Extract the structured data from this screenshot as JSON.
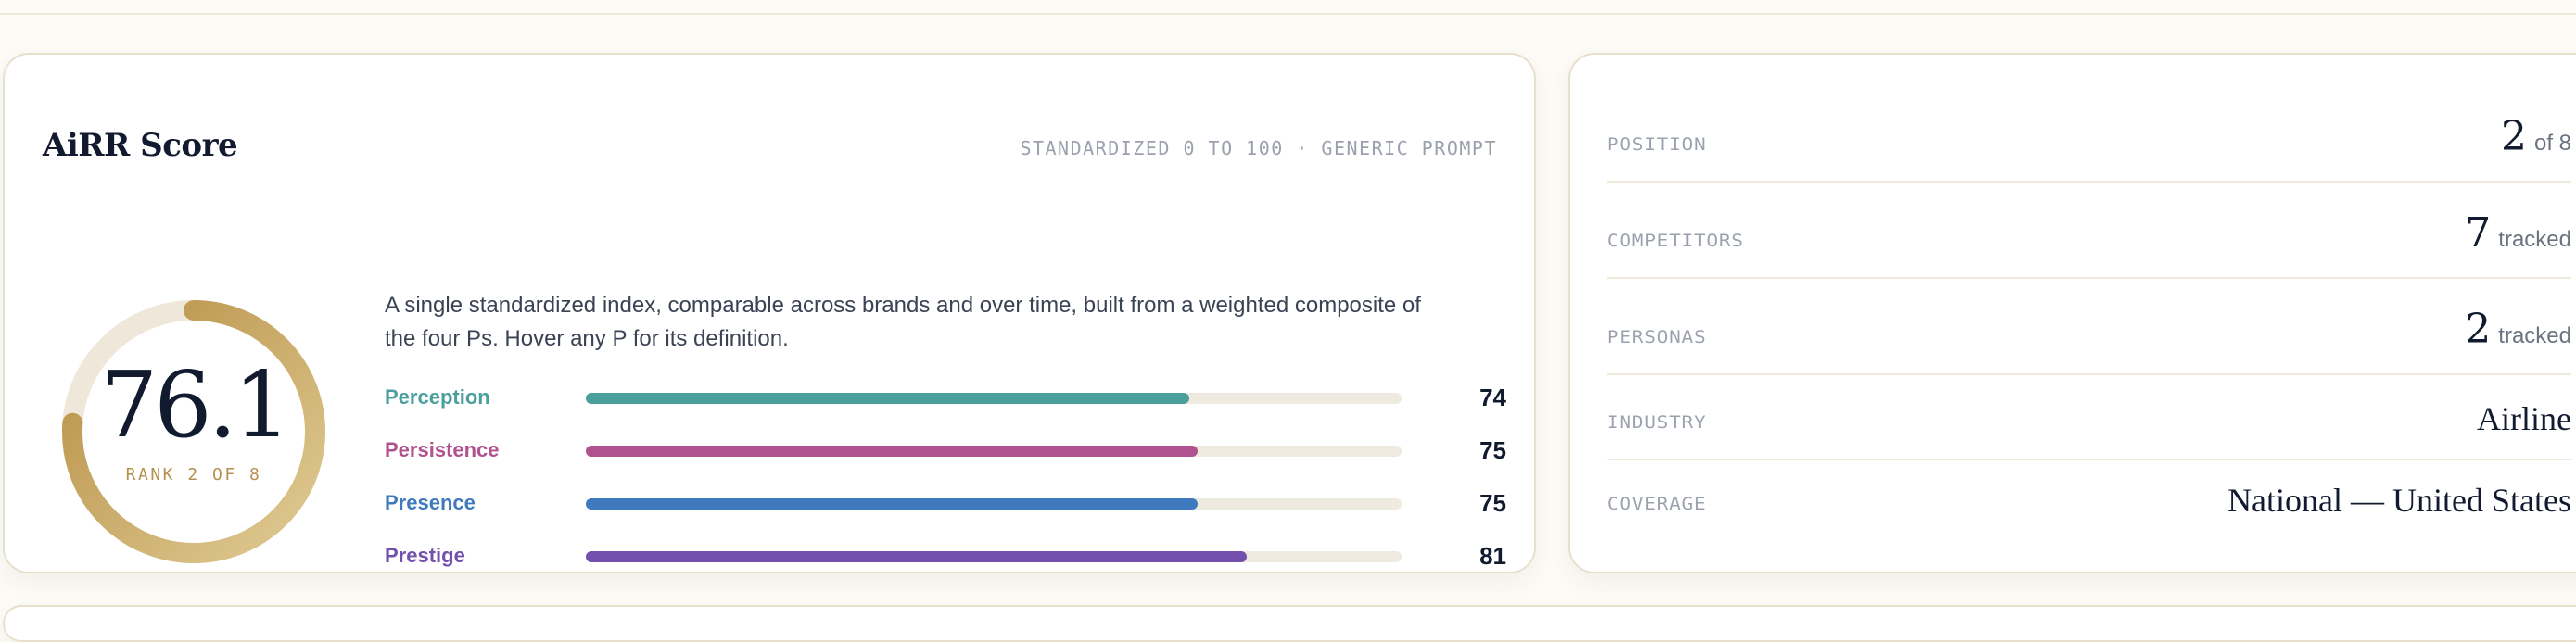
{
  "score_card": {
    "title": "AiRR Score",
    "subtitle": "STANDARDIZED 0 TO 100 · GENERIC PROMPT",
    "score": "76.1",
    "score_value": 76.1,
    "rank_label": "RANK 2 OF 8",
    "description": "A single standardized index, comparable across brands and over time, built from a weighted composite of the four Ps. Hover any P for its definition.",
    "ring_colors": {
      "start": "#e0cb94",
      "end": "#b68f44",
      "track": "#efe8da"
    },
    "pillars": [
      {
        "label": "Perception",
        "value": 74,
        "color": "#4b9f9c"
      },
      {
        "label": "Persistence",
        "value": 75,
        "color": "#b0528f"
      },
      {
        "label": "Presence",
        "value": 75,
        "color": "#3f79be"
      },
      {
        "label": "Prestige",
        "value": 81,
        "color": "#7350ad"
      }
    ]
  },
  "stats": [
    {
      "label": "POSITION",
      "number": "2",
      "unit": "of 8"
    },
    {
      "label": "COMPETITORS",
      "number": "7",
      "unit": "tracked"
    },
    {
      "label": "PERSONAS",
      "number": "2",
      "unit": "tracked"
    },
    {
      "label": "INDUSTRY",
      "text": "Airline"
    },
    {
      "label": "COVERAGE",
      "text": "National — United States"
    }
  ]
}
